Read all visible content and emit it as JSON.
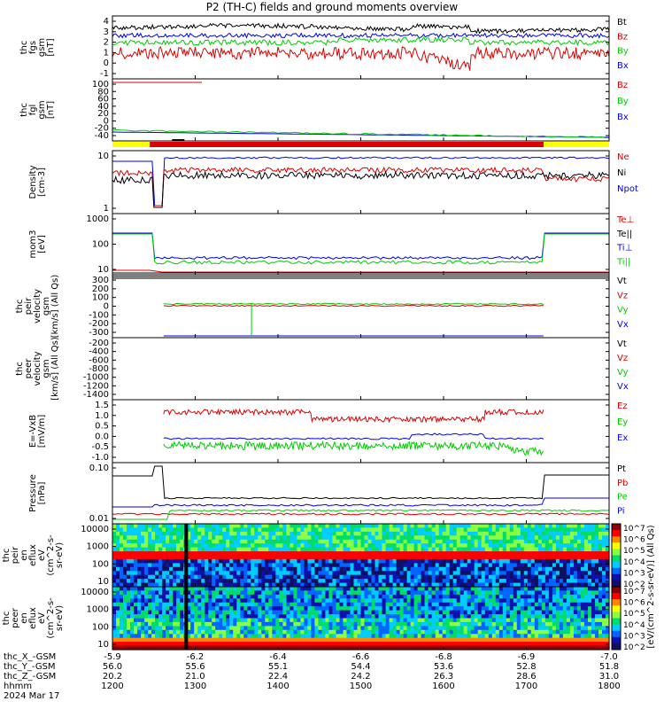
{
  "title": "P2 (TH-C) fields and ground moments overview",
  "colors": {
    "black": "#000000",
    "red": "#dd0000",
    "green": "#00cc00",
    "blue": "#0000ee",
    "yellow": "#ffff00"
  },
  "chart_data": {
    "type": "line",
    "title": "P2 (TH-C) fields and ground moments overview",
    "x_range": [
      "1200",
      "1800"
    ],
    "time_ticks": [
      "1200",
      "1300",
      "1400",
      "1500",
      "1600",
      "1700",
      "1800"
    ],
    "time_label": "hhmm",
    "date_label": "2024 Mar 17",
    "ephemeris": [
      {
        "label": "thc_X_-GSM",
        "values": [
          "-5.9",
          "-6.2",
          "-6.4",
          "-6.6",
          "-6.8",
          "-6.9",
          "-7.0"
        ]
      },
      {
        "label": "thc_Y_-GSM",
        "values": [
          "56.0",
          "55.6",
          "55.1",
          "54.4",
          "53.6",
          "52.8",
          "51.8"
        ]
      },
      {
        "label": "thc_Z_-GSM",
        "values": [
          "20.2",
          "21.0",
          "22.4",
          "24.2",
          "26.3",
          "28.6",
          "31.0"
        ]
      }
    ],
    "panels": [
      {
        "ylabel": [
          "thc",
          "fgs",
          "gsm",
          "[nT]"
        ],
        "ylim": [
          -1.5,
          5
        ],
        "ticks": [
          "4",
          "3",
          "2",
          "1",
          "0",
          "-1"
        ],
        "legend": [
          "Bt",
          "Bz",
          "By",
          "Bx"
        ],
        "legend_colors": [
          "black",
          "red",
          "green",
          "blue"
        ]
      },
      {
        "ylabel": [
          "thc",
          "fgl",
          "gsm",
          "[nT]"
        ],
        "ylim": [
          -50,
          100
        ],
        "ticks": [
          "100",
          "80",
          "60",
          "40",
          "20",
          "0",
          "-20",
          "-40"
        ],
        "legend": [
          "Bz",
          "By",
          "Bx"
        ],
        "legend_colors": [
          "red",
          "green",
          "blue"
        ]
      },
      {
        "ylabel": [
          "Density",
          "[cm-3]"
        ],
        "ylim": [
          0.5,
          20
        ],
        "ticks": [
          "10",
          "1"
        ],
        "legend": [
          "Ne",
          "Ni",
          "Npot"
        ],
        "legend_colors": [
          "red",
          "black",
          "blue"
        ]
      },
      {
        "ylabel": [
          "mom3",
          "[eV]"
        ],
        "ylim": [
          10,
          4000
        ],
        "ticks": [
          "1000",
          "100",
          "10"
        ],
        "legend": [
          "Te⊥",
          "Te||",
          "Ti⊥",
          "Ti||"
        ],
        "legend_colors": [
          "red",
          "black",
          "blue",
          "green"
        ]
      },
      {
        "ylabel": [
          "thc",
          "peir",
          "velocity",
          "gsm",
          "[km/s] (All Qs)"
        ],
        "ylim": [
          -320,
          350
        ],
        "ticks": [
          "300",
          "200",
          "100",
          "0",
          "-100",
          "-200",
          "-300"
        ],
        "legend": [
          "Vt",
          "Vz",
          "Vy",
          "Vx"
        ],
        "legend_colors": [
          "black",
          "red",
          "green",
          "blue"
        ]
      },
      {
        "ylabel": [
          "thc",
          "peer",
          "velocity",
          "gsm",
          "[km/s] (All Qs)"
        ],
        "ylim": [
          -1500,
          -150
        ],
        "ticks": [
          "-200",
          "-400",
          "-600",
          "-800",
          "-1000",
          "-1200",
          "-1400"
        ],
        "legend": [
          "Vt",
          "Vz",
          "Vy",
          "Vx"
        ],
        "legend_colors": [
          "black",
          "red",
          "green",
          "blue"
        ]
      },
      {
        "ylabel": [
          "E=-VxB",
          "[mV/m]"
        ],
        "ylim": [
          -1.1,
          1.5
        ],
        "ticks": [
          "1.5",
          "1.0",
          "0.5",
          "0.0",
          "-0.5",
          "-1.0"
        ],
        "legend": [
          "Ez",
          "Ey",
          "Ex"
        ],
        "legend_colors": [
          "red",
          "green",
          "blue"
        ]
      },
      {
        "ylabel": [
          "Pressure",
          "[nPa]"
        ],
        "ylim": [
          0.005,
          0.2
        ],
        "ticks": [
          "0.10",
          "0.01"
        ],
        "legend": [
          "Pt",
          "Pb",
          "Pe",
          "Pi"
        ],
        "legend_colors": [
          "black",
          "red",
          "green",
          "blue"
        ]
      },
      {
        "ylabel": [
          "thc",
          "peir",
          "en",
          "eflux",
          "eV",
          "(cm^2-s-",
          "sr-eV)"
        ],
        "ticks": [
          "10000",
          "1000",
          "100",
          "10"
        ],
        "type": "heatmap"
      },
      {
        "ylabel": [
          "thc",
          "peer",
          "en",
          "eflux",
          "eV",
          "(cm^2-s-",
          "sr-eV)"
        ],
        "ticks": [
          "10000",
          "1000",
          "100",
          "10"
        ],
        "type": "heatmap"
      }
    ],
    "colorbar": {
      "ticks": [
        "10^7",
        "10^6",
        "10^5",
        "10^4",
        "10^3",
        "10^2",
        "10^7",
        "10^6",
        "10^5",
        "10^4",
        "10^3",
        "10^2"
      ],
      "label": "[eV/(cm^2-s-sr-eV)] (All Qs)"
    }
  }
}
